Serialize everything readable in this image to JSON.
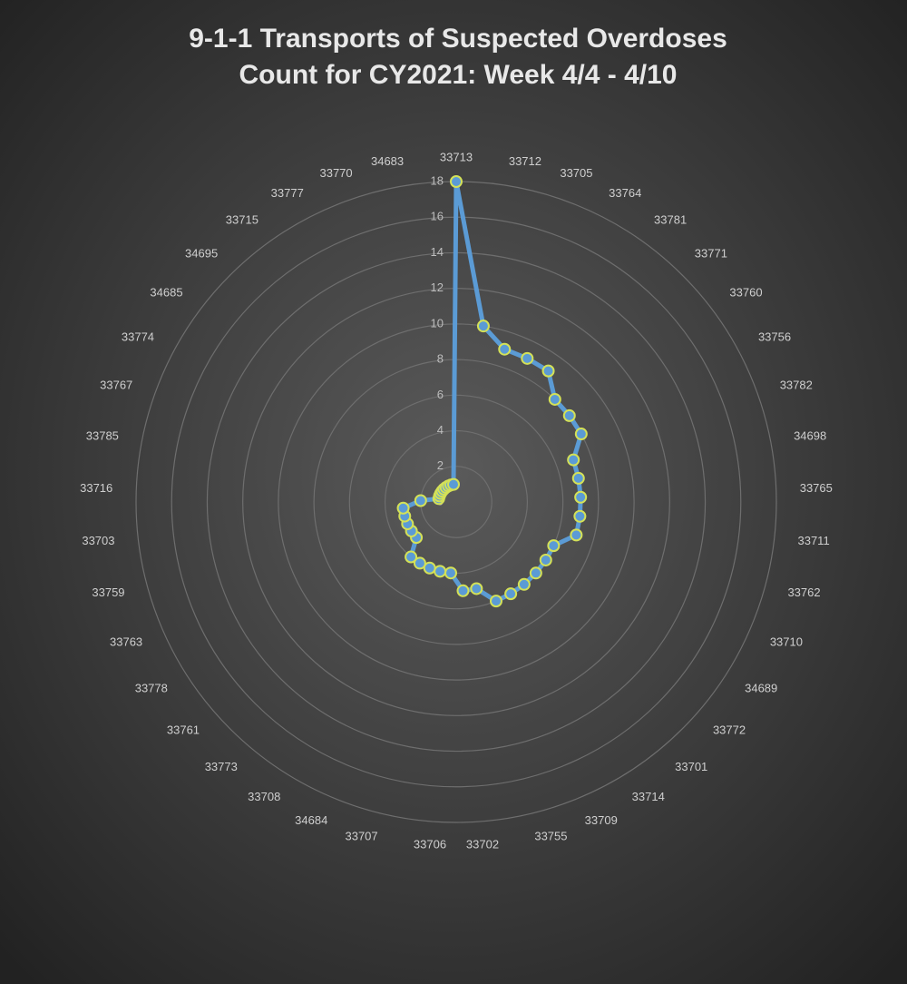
{
  "chart_data": {
    "type": "radar",
    "title": [
      "9-1-1 Transports of Suspected Overdoses",
      "Count for CY2021:  Week 4/4 - 4/10"
    ],
    "categories": [
      "33713",
      "33712",
      "33705",
      "33764",
      "33781",
      "33771",
      "33760",
      "33756",
      "33782",
      "34698",
      "33765",
      "33711",
      "33762",
      "33710",
      "34689",
      "33772",
      "33701",
      "33714",
      "33709",
      "33755",
      "33702",
      "33706",
      "33707",
      "34684",
      "33708",
      "33773",
      "33761",
      "33778",
      "33763",
      "33759",
      "33703",
      "33716",
      "33785",
      "33767",
      "33774",
      "34685",
      "34695",
      "33715",
      "33777",
      "33770",
      "34683"
    ],
    "series": [
      {
        "name": "Transports",
        "color": "#5b9bd5",
        "marker_edge": "#d4e157",
        "values": [
          18,
          10,
          9,
          9,
          9,
          8,
          8,
          8,
          7,
          7,
          7,
          7,
          7,
          6,
          6,
          6,
          6,
          6,
          6,
          5,
          5,
          4,
          4,
          4,
          4,
          4,
          3,
          3,
          3,
          3,
          3,
          2,
          1,
          1,
          1,
          1,
          1,
          1,
          1,
          1,
          1
        ]
      }
    ],
    "ylim": [
      0,
      18
    ],
    "yticks": [
      0,
      2,
      4,
      6,
      8,
      10,
      12,
      14,
      16,
      18
    ],
    "grid": true
  }
}
